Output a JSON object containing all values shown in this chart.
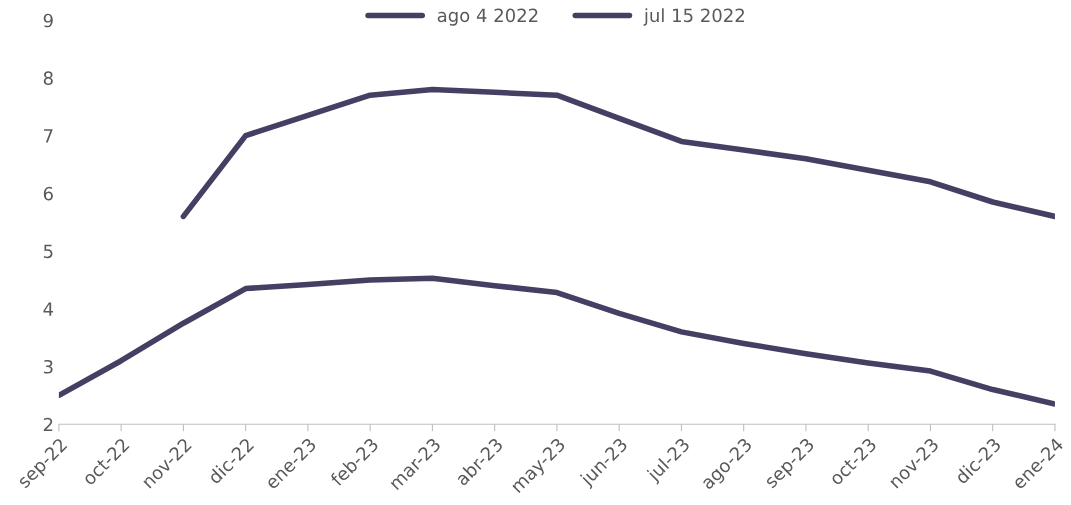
{
  "chart_data": {
    "type": "line",
    "categories": [
      "sep-22",
      "oct-22",
      "nov-22",
      "dic-22",
      "ene-23",
      "feb-23",
      "mar-23",
      "abr-23",
      "may-23",
      "jun-23",
      "jul-23",
      "ago-23",
      "sep-23",
      "oct-23",
      "nov-23",
      "dic-23",
      "ene-24"
    ],
    "series": [
      {
        "name": "ago 4 2022",
        "color": "#463f64",
        "values": [
          null,
          null,
          5.6,
          7.0,
          7.35,
          7.7,
          7.8,
          7.75,
          7.7,
          7.3,
          6.9,
          6.75,
          6.6,
          6.4,
          6.2,
          5.85,
          5.6
        ]
      },
      {
        "name": "jul 15 2022",
        "color": "#463f64",
        "values": [
          2.5,
          3.1,
          3.75,
          4.35,
          4.42,
          4.5,
          4.53,
          4.4,
          4.28,
          3.92,
          3.6,
          3.4,
          3.22,
          3.06,
          2.92,
          2.6,
          2.35
        ]
      }
    ],
    "ylim": [
      2,
      9
    ],
    "yticks": [
      2,
      3,
      4,
      5,
      6,
      7,
      8,
      9
    ],
    "grid": false,
    "legend": "top",
    "marker": "none",
    "line_style": "solid"
  }
}
